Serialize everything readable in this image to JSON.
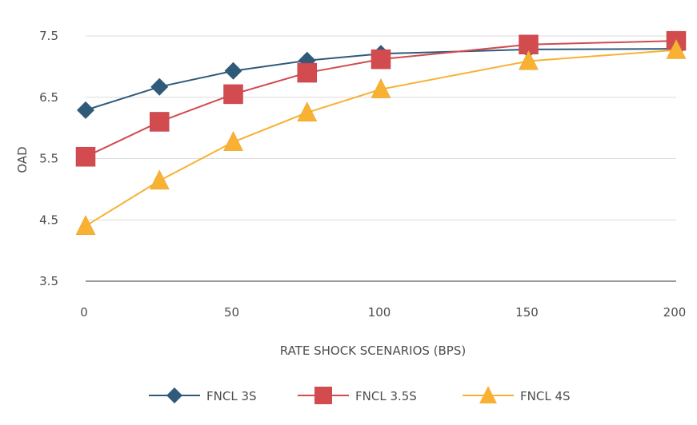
{
  "chart_data": {
    "type": "line",
    "title": "",
    "xlabel": "RATE SHOCK SCENARIOS (BPS)",
    "ylabel": "OAD",
    "x": [
      0,
      25,
      50,
      75,
      100,
      150,
      200
    ],
    "x_ticks": [
      0,
      50,
      100,
      150,
      200
    ],
    "x_tick_labels": [
      "0",
      "50",
      "100",
      "150",
      "200"
    ],
    "y_ticks": [
      3.5,
      4.5,
      5.5,
      6.5,
      7.5
    ],
    "y_tick_labels": [
      "3.5",
      "4.5",
      "5.5",
      "6.5",
      "7.5"
    ],
    "xlim": [
      0,
      200
    ],
    "ylim": [
      3.5,
      7.5
    ],
    "grid": true,
    "legend_position": "bottom",
    "series": [
      {
        "name": "FNCL 3S",
        "marker": "diamond",
        "color": "#2f5a7a",
        "values": [
          6.29,
          6.67,
          6.93,
          7.1,
          7.21,
          7.28,
          7.29
        ]
      },
      {
        "name": "FNCL 3.5S",
        "marker": "square",
        "color": "#d14b4f",
        "values": [
          5.53,
          6.1,
          6.55,
          6.9,
          7.12,
          7.36,
          7.42
        ]
      },
      {
        "name": "FNCL 4S",
        "marker": "triangle",
        "color": "#f8b133",
        "values": [
          4.4,
          5.14,
          5.77,
          6.25,
          6.63,
          7.09,
          7.27
        ]
      }
    ]
  }
}
